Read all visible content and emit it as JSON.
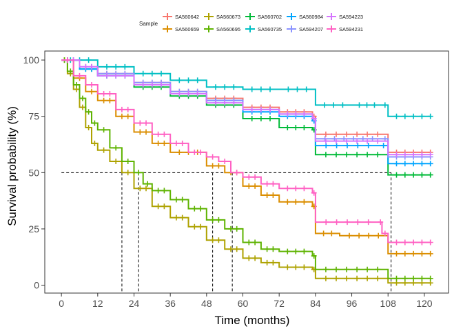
{
  "chart_data": {
    "type": "line",
    "title": "",
    "xlabel": "Time (months)",
    "ylabel": "Survival probability (%)",
    "xlim": [
      -5.5,
      128
    ],
    "ylim": [
      -3.5,
      104
    ],
    "x_ticks": [
      0,
      12,
      24,
      36,
      48,
      60,
      72,
      84,
      96,
      108,
      120
    ],
    "y_ticks": [
      0,
      25,
      50,
      75,
      100
    ],
    "grid": false,
    "legend": {
      "title": "Sample",
      "position": "top"
    },
    "median_line": {
      "y": 50,
      "x_values": [
        20,
        25.5,
        50,
        56.5,
        109
      ]
    },
    "series": [
      {
        "name": "SA560642",
        "color": "#F8766D",
        "points": [
          [
            0,
            100
          ],
          [
            6,
            97
          ],
          [
            12,
            94
          ],
          [
            24,
            90
          ],
          [
            36,
            86
          ],
          [
            48,
            83
          ],
          [
            60,
            79
          ],
          [
            72,
            77
          ],
          [
            83,
            75
          ],
          [
            84,
            67
          ],
          [
            108,
            59
          ],
          [
            122,
            59
          ]
        ]
      },
      {
        "name": "SA560659",
        "color": "#DB8E00",
        "points": [
          [
            0,
            100
          ],
          [
            4,
            92
          ],
          [
            8,
            86
          ],
          [
            12,
            82
          ],
          [
            18,
            75
          ],
          [
            24,
            68
          ],
          [
            30,
            63
          ],
          [
            36,
            59
          ],
          [
            48,
            53
          ],
          [
            54,
            50
          ],
          [
            60,
            44
          ],
          [
            66,
            40
          ],
          [
            72,
            37
          ],
          [
            83,
            35
          ],
          [
            84,
            23
          ],
          [
            92,
            22
          ],
          [
            108,
            14
          ],
          [
            122,
            14
          ]
        ]
      },
      {
        "name": "SA560673",
        "color": "#AEA200",
        "points": [
          [
            0,
            100
          ],
          [
            2,
            94
          ],
          [
            4,
            87
          ],
          [
            6,
            79
          ],
          [
            8,
            70
          ],
          [
            10,
            63
          ],
          [
            12,
            60
          ],
          [
            16,
            55
          ],
          [
            20,
            50
          ],
          [
            24,
            43
          ],
          [
            30,
            35
          ],
          [
            36,
            30
          ],
          [
            42,
            26
          ],
          [
            48,
            20
          ],
          [
            54,
            16
          ],
          [
            60,
            12
          ],
          [
            66,
            10
          ],
          [
            72,
            8
          ],
          [
            83,
            7
          ],
          [
            84,
            3
          ],
          [
            108,
            1
          ],
          [
            122,
            1
          ]
        ]
      },
      {
        "name": "SA560695",
        "color": "#5EB300",
        "points": [
          [
            0,
            100
          ],
          [
            2,
            95
          ],
          [
            4,
            89
          ],
          [
            6,
            83
          ],
          [
            8,
            77
          ],
          [
            10,
            72
          ],
          [
            12,
            69
          ],
          [
            16,
            61
          ],
          [
            20,
            55
          ],
          [
            24,
            50
          ],
          [
            27,
            45
          ],
          [
            30,
            42
          ],
          [
            36,
            38
          ],
          [
            42,
            34
          ],
          [
            48,
            29
          ],
          [
            54,
            25
          ],
          [
            60,
            19
          ],
          [
            66,
            16
          ],
          [
            72,
            15
          ],
          [
            83,
            13
          ],
          [
            84,
            7
          ],
          [
            108,
            3
          ],
          [
            122,
            3
          ]
        ]
      },
      {
        "name": "SA560702",
        "color": "#00BA38",
        "points": [
          [
            0,
            100
          ],
          [
            6,
            96
          ],
          [
            12,
            93
          ],
          [
            24,
            88
          ],
          [
            36,
            84
          ],
          [
            48,
            80
          ],
          [
            60,
            74
          ],
          [
            72,
            70
          ],
          [
            83,
            69
          ],
          [
            84,
            58
          ],
          [
            108,
            49
          ],
          [
            122,
            49
          ]
        ]
      },
      {
        "name": "SA560735",
        "color": "#00BFC4",
        "points": [
          [
            0,
            100
          ],
          [
            12,
            97
          ],
          [
            24,
            94
          ],
          [
            36,
            91
          ],
          [
            48,
            88
          ],
          [
            60,
            87
          ],
          [
            72,
            87
          ],
          [
            84,
            80
          ],
          [
            96,
            80
          ],
          [
            106,
            80
          ],
          [
            108,
            75
          ],
          [
            122,
            75
          ]
        ]
      },
      {
        "name": "SA560984",
        "color": "#00A5FF",
        "points": [
          [
            0,
            100
          ],
          [
            6,
            96
          ],
          [
            12,
            93
          ],
          [
            24,
            89
          ],
          [
            36,
            85
          ],
          [
            48,
            82
          ],
          [
            60,
            77
          ],
          [
            72,
            75
          ],
          [
            83,
            73
          ],
          [
            84,
            62
          ],
          [
            105,
            62
          ],
          [
            108,
            54
          ],
          [
            122,
            54
          ]
        ]
      },
      {
        "name": "SA594207",
        "color": "#8B93FF",
        "points": [
          [
            0,
            100
          ],
          [
            6,
            97
          ],
          [
            12,
            94
          ],
          [
            24,
            90
          ],
          [
            36,
            86
          ],
          [
            48,
            82
          ],
          [
            60,
            78
          ],
          [
            72,
            76
          ],
          [
            83,
            74
          ],
          [
            84,
            65
          ],
          [
            106,
            65
          ],
          [
            108,
            57
          ],
          [
            122,
            57
          ]
        ]
      },
      {
        "name": "SA594223",
        "color": "#D575FE",
        "points": [
          [
            0,
            100
          ],
          [
            6,
            97
          ],
          [
            12,
            93
          ],
          [
            24,
            89
          ],
          [
            36,
            85
          ],
          [
            48,
            81
          ],
          [
            60,
            78
          ],
          [
            72,
            76
          ],
          [
            83,
            74
          ],
          [
            84,
            64
          ],
          [
            108,
            58
          ],
          [
            122,
            58
          ]
        ]
      },
      {
        "name": "SA594231",
        "color": "#FF61C3",
        "points": [
          [
            0,
            100
          ],
          [
            4,
            93
          ],
          [
            8,
            89
          ],
          [
            12,
            85
          ],
          [
            18,
            78
          ],
          [
            24,
            72
          ],
          [
            30,
            67
          ],
          [
            36,
            63
          ],
          [
            42,
            59
          ],
          [
            48,
            57
          ],
          [
            52,
            55
          ],
          [
            56,
            50
          ],
          [
            60,
            48
          ],
          [
            66,
            45
          ],
          [
            72,
            43
          ],
          [
            83,
            41
          ],
          [
            84,
            28
          ],
          [
            105,
            28
          ],
          [
            106,
            23
          ],
          [
            108,
            19
          ],
          [
            122,
            19
          ]
        ]
      }
    ]
  }
}
